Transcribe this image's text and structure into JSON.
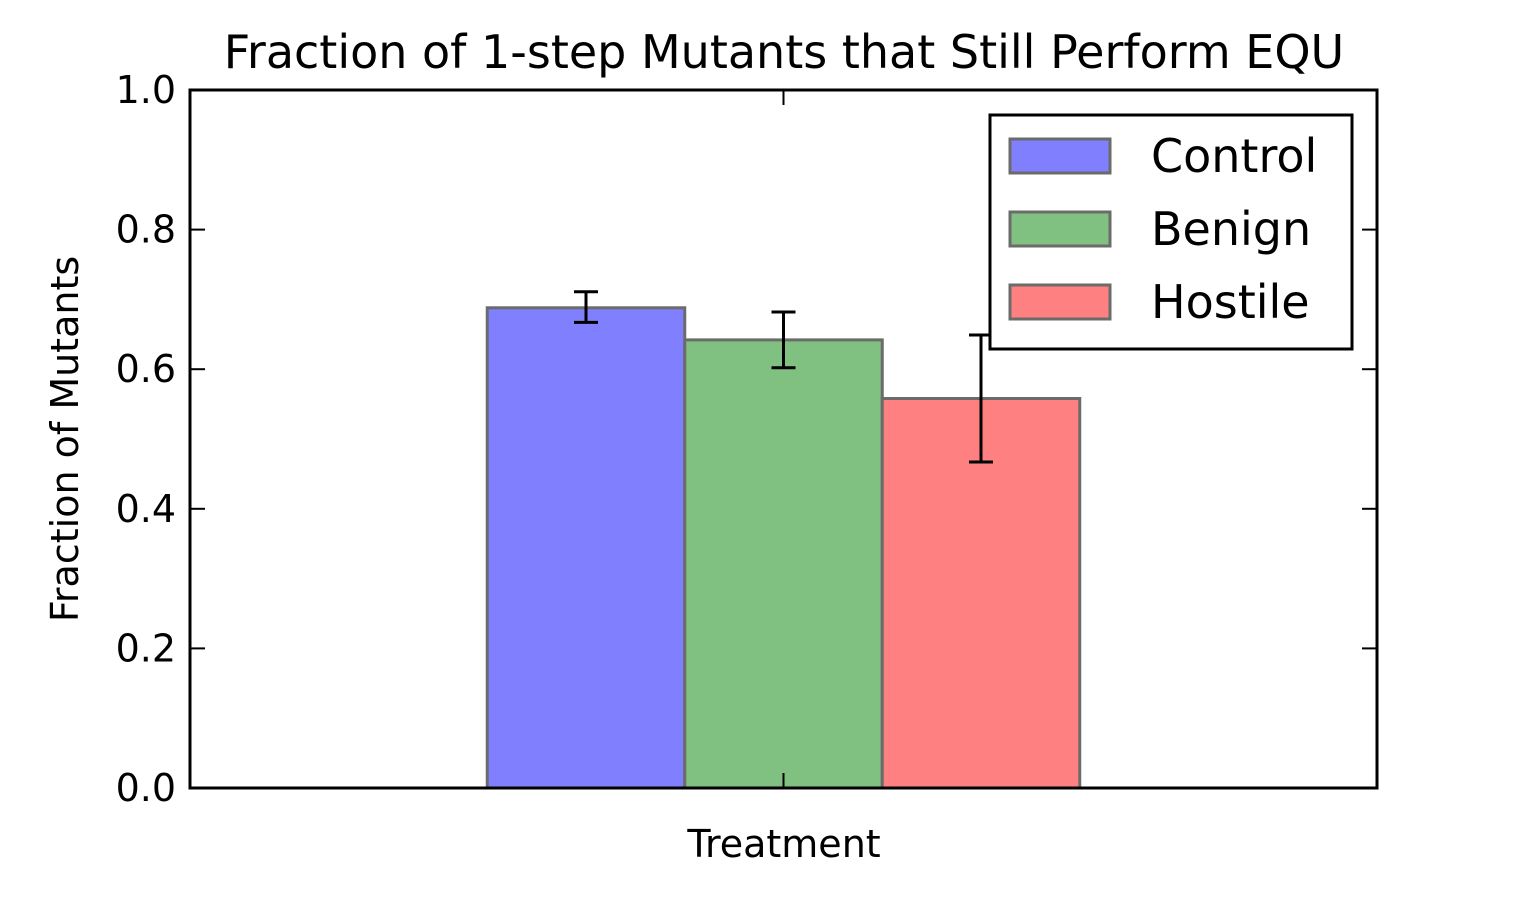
{
  "chart_data": {
    "type": "bar",
    "title": "Fraction of 1-step Mutants that Still Perform EQU",
    "xlabel": "Treatment",
    "ylabel": "Fraction of Mutants",
    "ylim": [
      0,
      1.0
    ],
    "yticks": [
      "0.0",
      "0.2",
      "0.4",
      "0.6",
      "0.8",
      "1.0"
    ],
    "categories": [
      ""
    ],
    "series": [
      {
        "name": "Control",
        "values": [
          0.688
        ],
        "error": [
          [
            0.667,
            0.711
          ]
        ],
        "color": "#8080ff"
      },
      {
        "name": "Benign",
        "values": [
          0.642
        ],
        "error": [
          [
            0.602,
            0.682
          ]
        ],
        "color": "#80c080"
      },
      {
        "name": "Hostile",
        "values": [
          0.558
        ],
        "error": [
          [
            0.467,
            0.649
          ]
        ],
        "color": "#ff8080"
      }
    ],
    "legend_position": "top-right",
    "grid": false
  }
}
